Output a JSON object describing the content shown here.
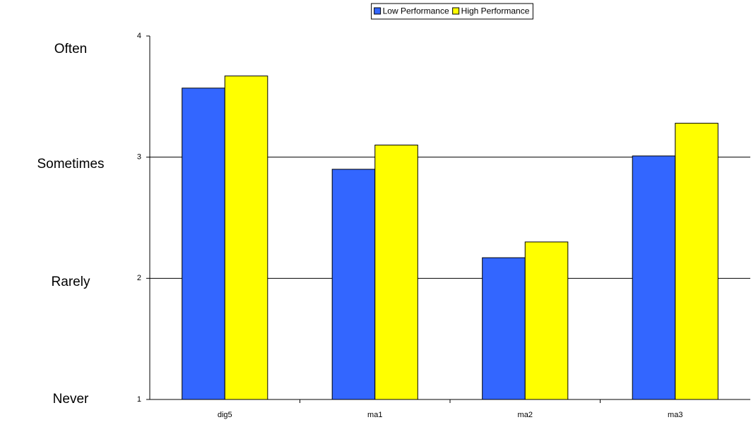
{
  "chart_data": {
    "type": "bar",
    "categories": [
      "dig5",
      "ma1",
      "ma2",
      "ma3"
    ],
    "series": [
      {
        "name": "Low Performance",
        "color": "#3366ff",
        "values": [
          3.57,
          2.9,
          2.17,
          3.01
        ]
      },
      {
        "name": "High Performance",
        "color": "#ffff00",
        "values": [
          3.67,
          3.1,
          2.3,
          3.28
        ]
      }
    ],
    "ylim": [
      1,
      4
    ],
    "yticks": [
      1,
      2,
      3,
      4
    ],
    "grid": true,
    "legend": "top",
    "y_labels": [
      "Often",
      "Sometimes",
      "Rarely",
      "Never"
    ]
  }
}
